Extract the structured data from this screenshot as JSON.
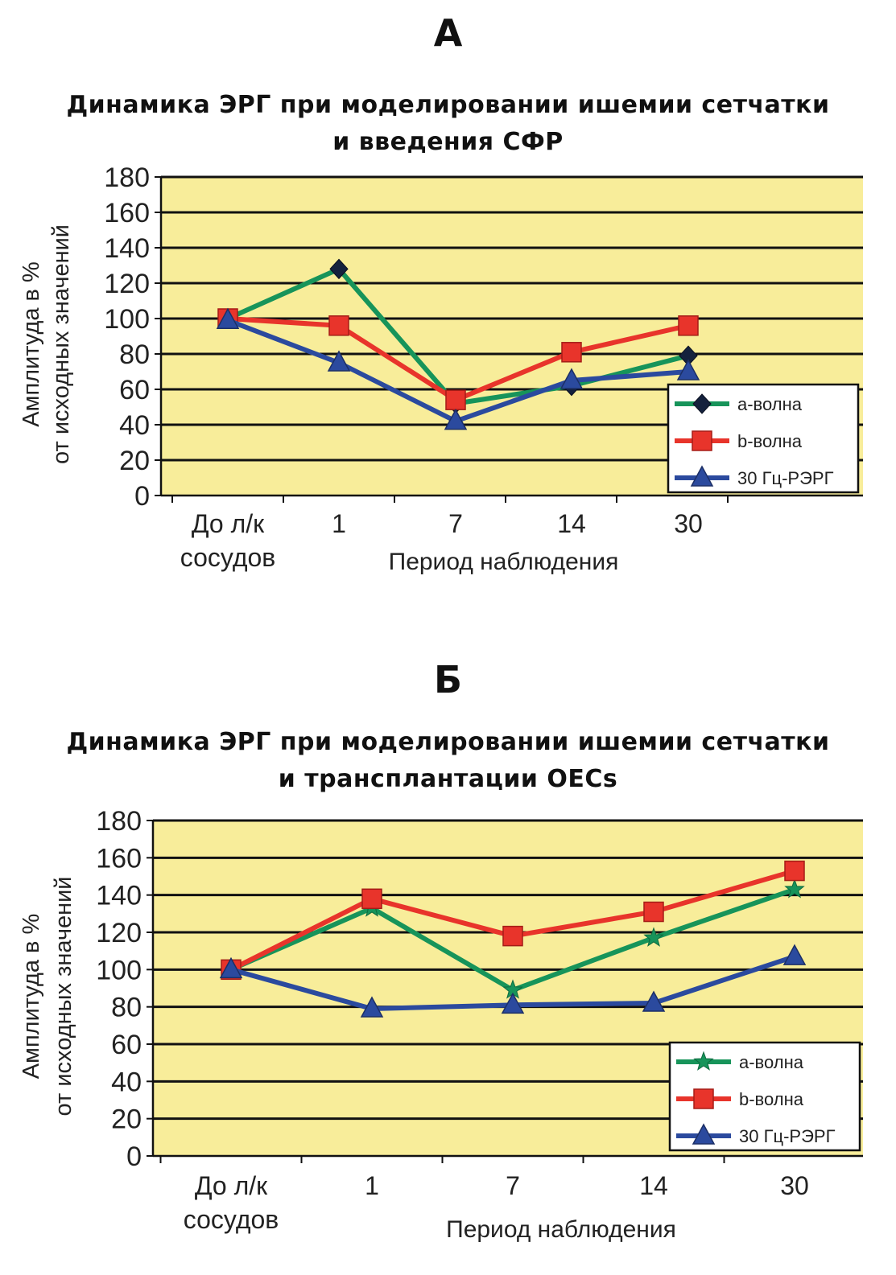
{
  "panels": [
    {
      "letter": "А",
      "title_line1": "Динамика ЭРГ при моделировании ишемии сетчатки",
      "title_line2": "и введения СФР"
    },
    {
      "letter": "Б",
      "title_line1": "Динамика ЭРГ при моделировании ишемии сетчатки",
      "title_line2": "и трансплантации OECs"
    }
  ],
  "chart_data": [
    {
      "type": "line",
      "title": "Динамика ЭРГ при моделировании ишемии сетчатки и введения СФР",
      "xlabel": "Период наблюдения",
      "ylabel_line1": "Амплитуда в %",
      "ylabel_line2": "от исходных значений",
      "categories": [
        [
          "До л/к",
          "сосудов"
        ],
        [
          "1"
        ],
        [
          "7"
        ],
        [
          "14"
        ],
        [
          "30"
        ]
      ],
      "y_ticks": [
        "0",
        "20",
        "40",
        "60",
        "80",
        "100",
        "120",
        "140",
        "160",
        "180"
      ],
      "ylim": [
        0,
        180
      ],
      "grid": true,
      "plot_background": "#f8ed9a",
      "legend_position": "bottom-right",
      "series": [
        {
          "name": "a-волна",
          "color": "#17945a",
          "marker": "diamond",
          "values": [
            100,
            128,
            52,
            62,
            79
          ]
        },
        {
          "name": "b-волна",
          "color": "#e8342b",
          "marker": "square",
          "values": [
            100,
            96,
            54,
            81,
            96
          ]
        },
        {
          "name": "30 Гц-РЭРГ",
          "color": "#2b4a9e",
          "marker": "triangle",
          "values": [
            99,
            75,
            42,
            65,
            70
          ]
        }
      ]
    },
    {
      "type": "line",
      "title": "Динамика ЭРГ при моделировании ишемии сетчатки и трансплантации OECs",
      "xlabel": "Период наблюдения",
      "ylabel_line1": "Амплитуда в %",
      "ylabel_line2": "от исходных значений",
      "categories": [
        [
          "До л/к",
          "сосудов"
        ],
        [
          "1"
        ],
        [
          "7"
        ],
        [
          "14"
        ],
        [
          "30"
        ]
      ],
      "y_ticks": [
        "0",
        "20",
        "40",
        "60",
        "80",
        "100",
        "120",
        "140",
        "160",
        "180"
      ],
      "ylim": [
        0,
        180
      ],
      "grid": true,
      "plot_background": "#f8ed9a",
      "legend_position": "bottom-right",
      "series": [
        {
          "name": "a-волна",
          "color": "#17945a",
          "marker": "star",
          "values": [
            100,
            133,
            89,
            117,
            143
          ]
        },
        {
          "name": "b-волна",
          "color": "#e8342b",
          "marker": "square",
          "values": [
            100,
            138,
            118,
            131,
            153
          ]
        },
        {
          "name": "30 Гц-РЭРГ",
          "color": "#2b4a9e",
          "marker": "triangle",
          "values": [
            100,
            79,
            81,
            82,
            107
          ]
        }
      ]
    }
  ]
}
